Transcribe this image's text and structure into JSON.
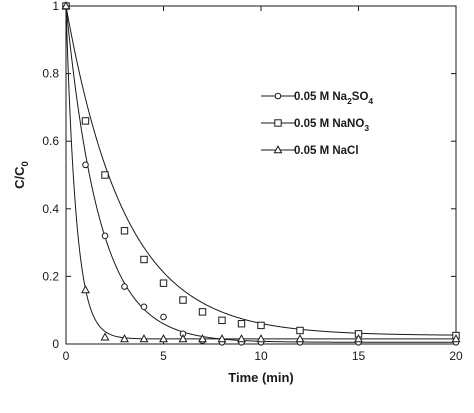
{
  "chart_data": {
    "type": "scatter",
    "xlabel": "Time (min)",
    "ylabel_main": "C/C",
    "ylabel_sub": "0",
    "xlim": [
      0,
      20
    ],
    "ylim": [
      0,
      1
    ],
    "xticks": [
      "0",
      "5",
      "10",
      "15",
      "20"
    ],
    "yticks": [
      "0",
      "0.2",
      "0.4",
      "0.6",
      "0.8",
      "1"
    ],
    "grid": false,
    "legend_position": "top-right",
    "series": [
      {
        "name": "0.05 M Na2SO4",
        "label_parts": [
          [
            "0.05 M Na",
            "n"
          ],
          [
            "2",
            "s"
          ],
          [
            "SO",
            "n"
          ],
          [
            "4",
            "s"
          ]
        ],
        "marker": "circle",
        "x": [
          0,
          1,
          2,
          3,
          4,
          5,
          6,
          7,
          8,
          9,
          10,
          12,
          15,
          20
        ],
        "y": [
          1,
          0.53,
          0.32,
          0.17,
          0.11,
          0.08,
          0.03,
          0.01,
          0.005,
          0.005,
          0.005,
          0.005,
          0.005,
          0.005
        ],
        "fit_k": 0.58,
        "fit_c": 0.005
      },
      {
        "name": "0.05 M NaNO3",
        "label_parts": [
          [
            "0.05 M NaNO",
            "n"
          ],
          [
            "3",
            "s"
          ]
        ],
        "marker": "square",
        "x": [
          0,
          1,
          2,
          3,
          4,
          5,
          6,
          7,
          8,
          9,
          10,
          12,
          15,
          20
        ],
        "y": [
          1,
          0.66,
          0.5,
          0.335,
          0.25,
          0.18,
          0.13,
          0.095,
          0.07,
          0.06,
          0.055,
          0.04,
          0.03,
          0.025
        ],
        "fit_k": 0.33,
        "fit_c": 0.025
      },
      {
        "name": "0.05 M NaCl",
        "label_parts": [
          [
            "0.05 M NaCl",
            "n"
          ]
        ],
        "marker": "triangle",
        "x": [
          0,
          1,
          2,
          3,
          4,
          5,
          6,
          7,
          8,
          9,
          10,
          12,
          15,
          20
        ],
        "y": [
          1,
          0.16,
          0.02,
          0.015,
          0.015,
          0.015,
          0.015,
          0.015,
          0.015,
          0.015,
          0.015,
          0.015,
          0.015,
          0.015
        ],
        "fit_k": 1.9,
        "fit_c": 0.015
      }
    ]
  }
}
